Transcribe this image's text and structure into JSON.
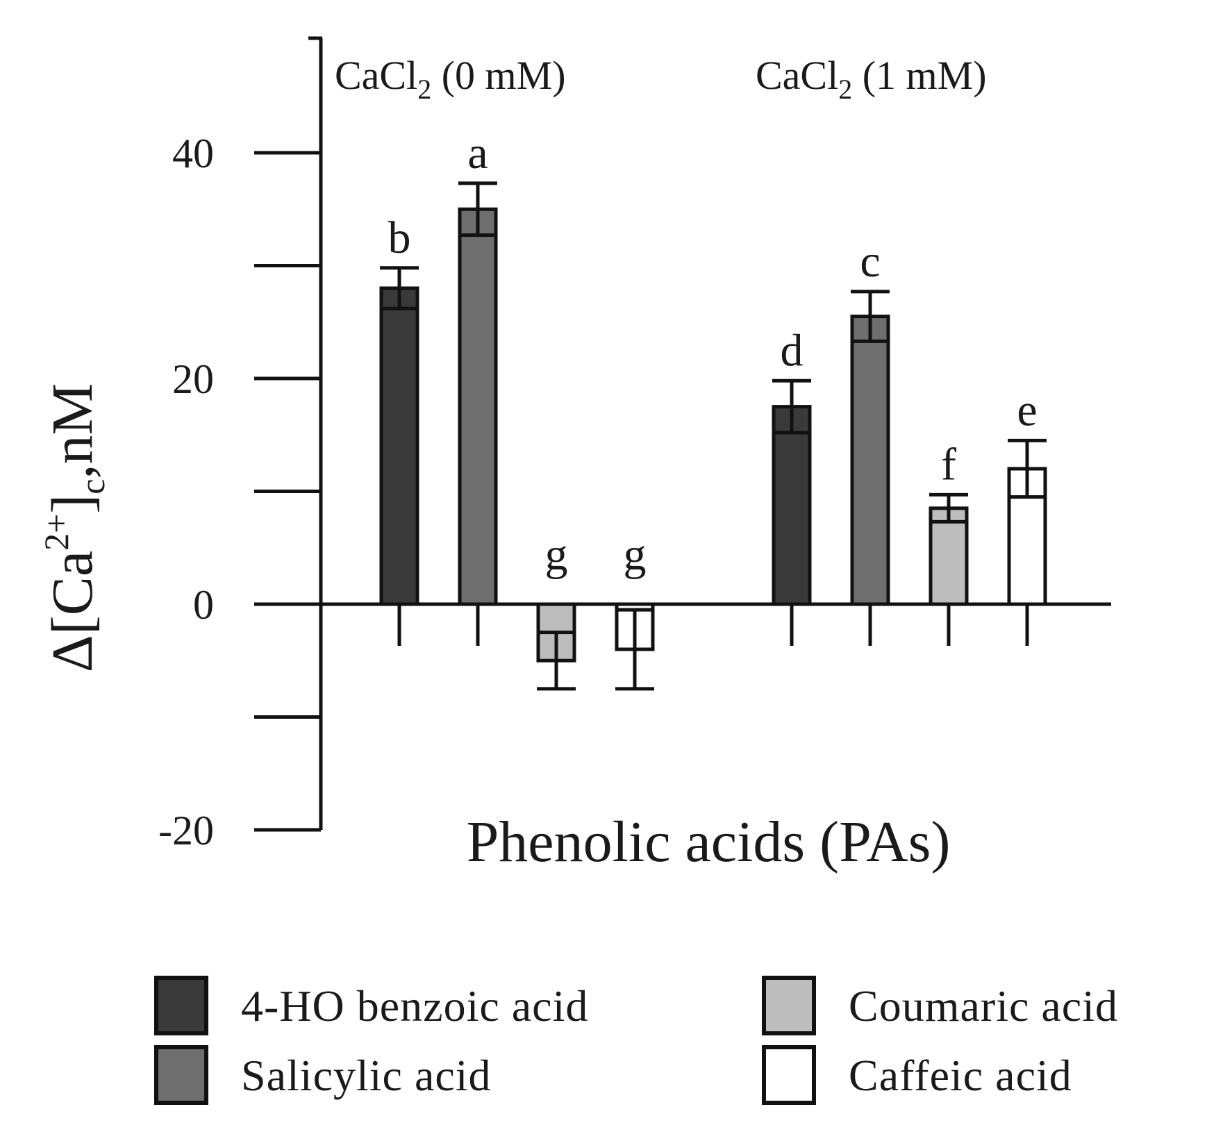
{
  "chart_data": {
    "type": "bar",
    "ylabel": "Δ[Ca2+]c,nM",
    "xlabel": "Phenolic acids (PAs)",
    "ylim": [
      -20,
      50
    ],
    "yticks": [
      -20,
      -10,
      0,
      10,
      20,
      30,
      40
    ],
    "ytick_labels": [
      {
        "value": -20,
        "label": "-20"
      },
      {
        "value": 0,
        "label": "0"
      },
      {
        "value": 20,
        "label": "20"
      },
      {
        "value": 40,
        "label": "40"
      }
    ],
    "grid": false,
    "legend_position": "bottom",
    "groups": [
      {
        "label_main": "CaCl",
        "label_sub": "2",
        "label_tail": " (0 mM)"
      },
      {
        "label_main": "CaCl",
        "label_sub": "2",
        "label_tail": " (1 mM)"
      }
    ],
    "series": [
      {
        "name": "4-HO benzoic acid",
        "color": "#3a3a3a",
        "values": [
          28,
          17.5
        ],
        "errors": [
          1.8,
          2.3
        ],
        "letters": [
          "b",
          "d"
        ]
      },
      {
        "name": "Salicylic acid",
        "color": "#6e6e6e",
        "values": [
          35,
          25.5
        ],
        "errors": [
          2.3,
          2.2
        ],
        "letters": [
          "a",
          "c"
        ]
      },
      {
        "name": "Coumaric acid",
        "color": "#bdbdbd",
        "values": [
          -5,
          8.5
        ],
        "errors": [
          2.5,
          1.2
        ],
        "letters": [
          "g",
          "f"
        ]
      },
      {
        "name": "Caffeic acid",
        "color": "#ffffff",
        "values": [
          -4,
          12
        ],
        "errors": [
          3.5,
          2.5
        ],
        "letters": [
          "g",
          "e"
        ]
      }
    ]
  }
}
